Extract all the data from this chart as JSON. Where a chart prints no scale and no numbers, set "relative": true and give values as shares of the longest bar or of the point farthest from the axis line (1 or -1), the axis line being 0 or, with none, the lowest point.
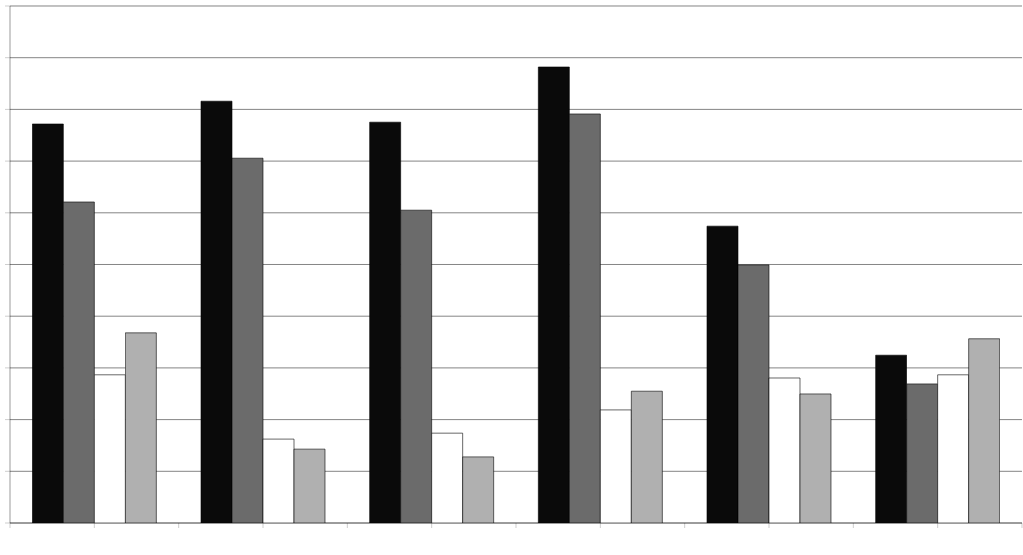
{
  "chart_data": {
    "type": "bar",
    "relative": true,
    "grid": "y",
    "legend": false,
    "categories": [
      null,
      null,
      null,
      null,
      null,
      null
    ],
    "series": [
      {
        "color": "#0a0a0a",
        "values": [
          0.875,
          0.925,
          0.879,
          1,
          0.651,
          0.368
        ]
      },
      {
        "color": "#6b6b6b",
        "values": [
          0.704,
          0.8,
          0.686,
          0.897,
          0.566,
          0.305
        ]
      },
      {
        "color": "#ffffff",
        "values": [
          0.325,
          0.184,
          0.197,
          0.248,
          0.318,
          0.325
        ]
      },
      {
        "color": "#b0b0b0",
        "values": [
          0.417,
          0.162,
          0.145,
          0.289,
          0.283,
          0.404
        ]
      }
    ]
  }
}
